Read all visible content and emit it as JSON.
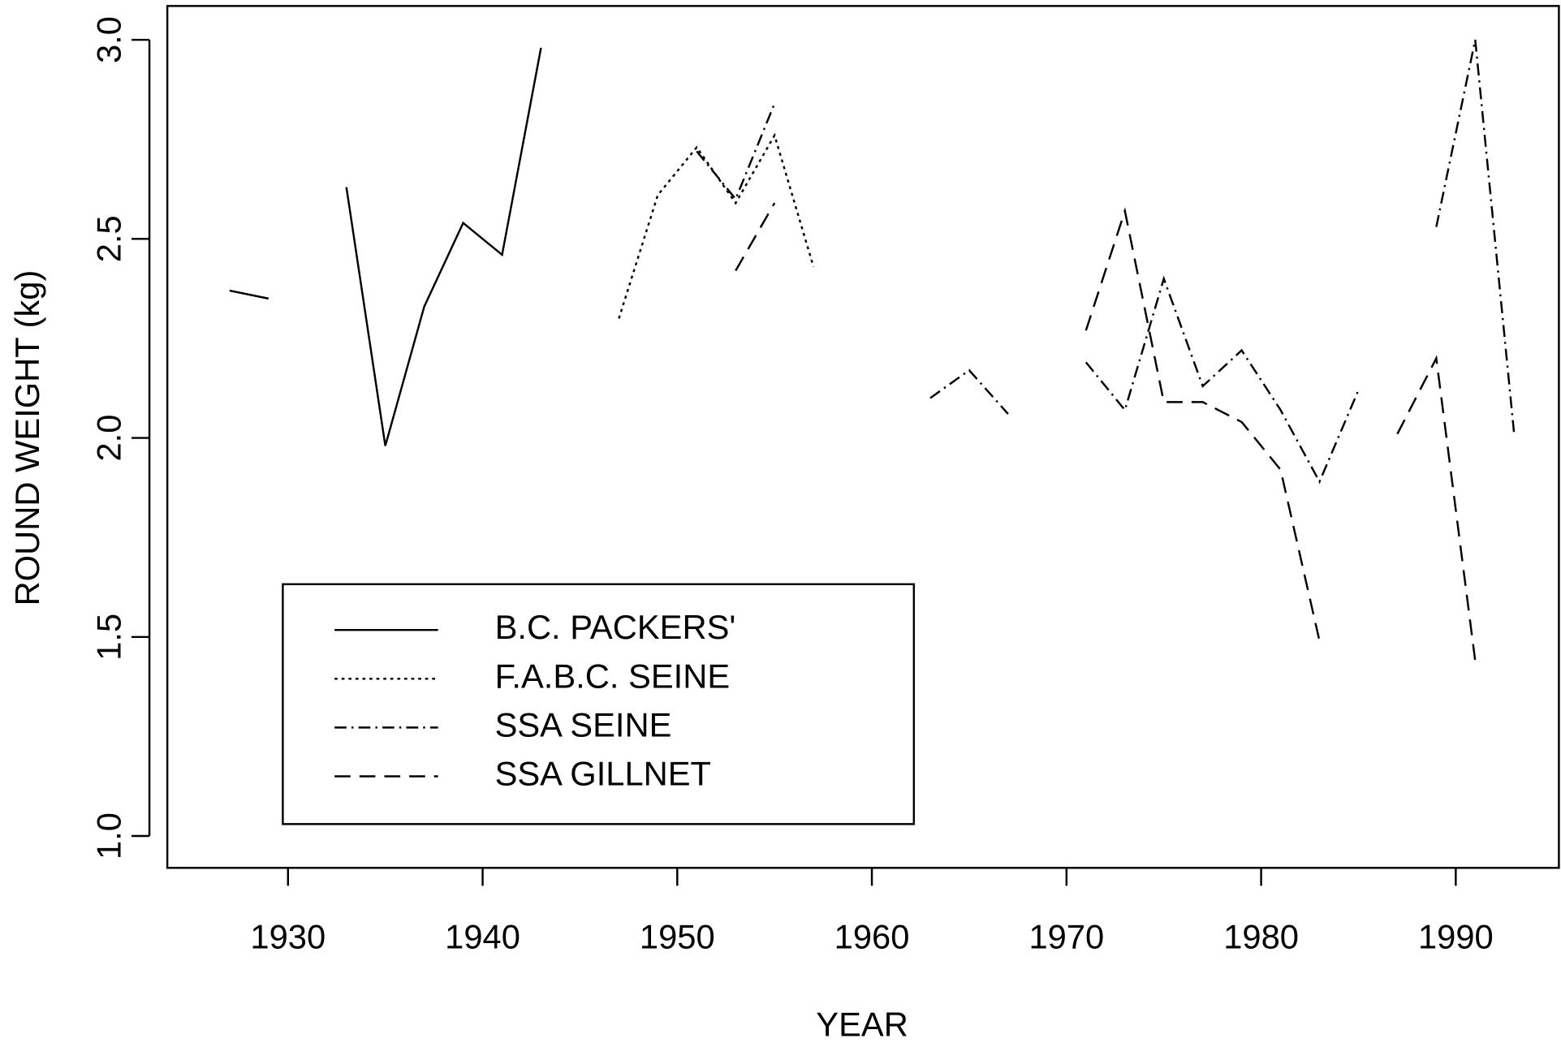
{
  "chart_data": {
    "type": "line",
    "x_label": "YEAR",
    "y_label": "ROUND WEIGHT (kg)",
    "x": [
      1927,
      1929,
      1931,
      1933,
      1935,
      1937,
      1939,
      1941,
      1943,
      1945,
      1947,
      1949,
      1951,
      1953,
      1955,
      1957,
      1959,
      1961,
      1963,
      1965,
      1967,
      1969,
      1971,
      1973,
      1975,
      1977,
      1979,
      1981,
      1983,
      1985,
      1987,
      1989,
      1991,
      1993
    ],
    "series": [
      {
        "name": "B.C. PACKERS'",
        "color": "#000000",
        "linestyle": "solid",
        "values": [
          2.37,
          2.35,
          null,
          2.63,
          1.98,
          2.33,
          2.54,
          2.46,
          2.98,
          null,
          null,
          null,
          null,
          null,
          null,
          null,
          null,
          null,
          null,
          null,
          null,
          null,
          null,
          null,
          null,
          null,
          null,
          null,
          null,
          null,
          null,
          null,
          null,
          null
        ]
      },
      {
        "name": "F.A.B.C. SEINE",
        "color": "#000000",
        "linestyle": "dotted",
        "values": [
          null,
          null,
          null,
          null,
          null,
          null,
          null,
          null,
          null,
          null,
          2.3,
          2.61,
          2.73,
          2.59,
          2.76,
          2.43,
          null,
          null,
          null,
          null,
          null,
          null,
          null,
          null,
          null,
          null,
          null,
          null,
          null,
          null,
          null,
          null,
          null,
          null
        ]
      },
      {
        "name": "SSA SEINE",
        "color": "#000000",
        "linestyle": "dashdot",
        "values": [
          null,
          null,
          null,
          null,
          null,
          null,
          null,
          null,
          null,
          null,
          null,
          null,
          2.72,
          2.6,
          2.84,
          null,
          null,
          null,
          2.1,
          2.17,
          2.06,
          null,
          2.19,
          2.07,
          2.4,
          2.13,
          2.22,
          2.07,
          1.89,
          2.12,
          null,
          2.53,
          3.0,
          2.01
        ]
      },
      {
        "name": "SSA GILLNET",
        "color": "#000000",
        "linestyle": "dashed",
        "values": [
          null,
          null,
          null,
          null,
          null,
          null,
          null,
          null,
          null,
          null,
          null,
          null,
          null,
          2.42,
          2.59,
          null,
          null,
          null,
          null,
          null,
          null,
          null,
          2.27,
          2.57,
          2.09,
          2.09,
          2.04,
          1.92,
          1.49,
          null,
          2.01,
          2.2,
          1.44,
          null
        ]
      }
    ],
    "xlim": [
      1923.8,
      1995.3
    ],
    "ylim": [
      0.92,
      3.085
    ],
    "xticks": [
      1930,
      1940,
      1950,
      1960,
      1970,
      1980,
      1990
    ],
    "yticks": [
      {
        "value": 1,
        "label": "1.0"
      },
      1.5,
      {
        "value": 2,
        "label": "2.0"
      },
      2.5,
      {
        "value": 3,
        "label": "3.0"
      }
    ],
    "legend": "bottom-left",
    "grid": false
  }
}
